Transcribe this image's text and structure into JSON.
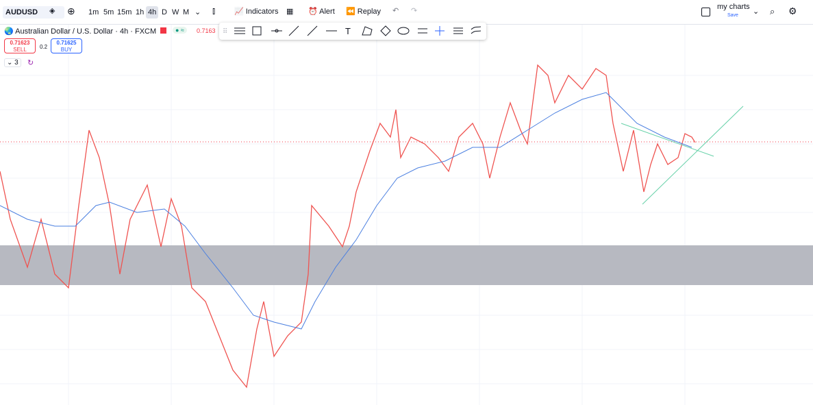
{
  "toolbar": {
    "symbol": "AUDUSD",
    "intervals": [
      "1m",
      "5m",
      "15m",
      "1h",
      "4h",
      "D",
      "W",
      "M"
    ],
    "indicators": "Indicators",
    "alert": "Alert",
    "replay": "Replay",
    "layout_name": "my charts",
    "save": "Save"
  },
  "legend": {
    "title": "Australian Dollar / U.S. Dollar · 4h · FXCM",
    "price": "0.7163",
    "sell_price": "0.71623",
    "sell": "SELL",
    "spread": "0.2",
    "buy_price": "0.71625",
    "buy": "BUY",
    "indicator_count": "3"
  }
}
